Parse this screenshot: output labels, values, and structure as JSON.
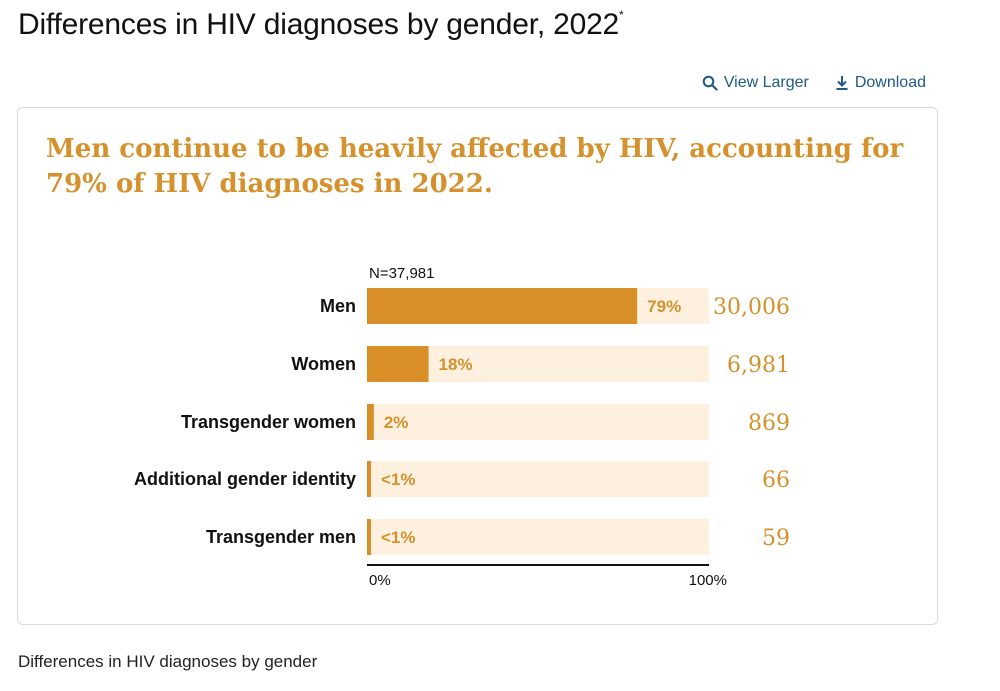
{
  "page": {
    "title": "Differences in HIV diagnoses by gender, 2022",
    "title_marker": "*",
    "caption": "Differences in HIV diagnoses by gender"
  },
  "toolbar": {
    "view_larger_label": "View Larger",
    "download_label": "Download",
    "link_color": "#1e5a86"
  },
  "icons": {
    "view_larger": "search-icon",
    "download": "download-icon"
  },
  "colors": {
    "bar_fill": "#d98f27",
    "bar_track": "#fdf0de",
    "accent_text": "#d4912c"
  },
  "chart_data": {
    "type": "bar",
    "orientation": "horizontal",
    "title": "Men continue to be heavily affected by HIV, accounting for 79% of HIV diagnoses in 2022.",
    "n_label": "N=37,981",
    "categories": [
      "Men",
      "Women",
      "Transgender women",
      "Additional gender identity",
      "Transgender men"
    ],
    "values": [
      79,
      18,
      2,
      0.7,
      0.7
    ],
    "percent_labels": [
      "79%",
      "18%",
      "2%",
      "<1%",
      "<1%"
    ],
    "counts": [
      "30,006",
      "6,981",
      "869",
      "66",
      "59"
    ],
    "xlim": [
      0,
      100
    ],
    "xtick_labels": [
      "0%",
      "100%"
    ],
    "xlabel": "",
    "ylabel": "",
    "grid": false
  }
}
